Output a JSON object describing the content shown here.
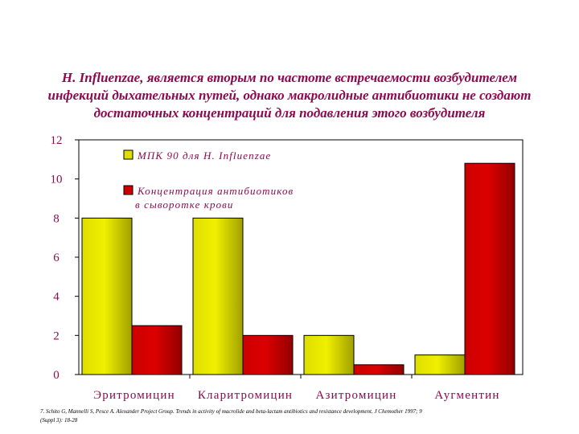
{
  "title_lines": [
    "H. Influenzae, является вторым по частоте встречаемости возбудителем",
    "инфекций дыхательных путей, однако макролидные антибиотики не создают",
    "достаточных концентраций для подавления этого возбудителя"
  ],
  "citation_lines": [
    "7. Schito G, Mannelli S, Pesce A. Alexander Project Group. Trends in activity of macrolide and beta-lactam antibiotics and resistance development. J Chemother 1997; 9",
    "(Suppl 3): 18-28"
  ],
  "colors": {
    "title": "#8b0a50",
    "axis_labels": "#8b0a50",
    "legend_text": "#8b0a50",
    "series_yellow": "#dede00",
    "series_red": "#cc0000"
  },
  "chart_data": {
    "type": "bar",
    "categories": [
      "Эритромицин",
      "Кларитромицин",
      "Азитромицин",
      "Аугментин"
    ],
    "series": [
      {
        "name": "МПК 90 для H. Influenzae",
        "values": [
          8,
          8,
          2,
          1
        ],
        "color": "#dede00"
      },
      {
        "name": "Концентрация антибиотиков в сыворотке крови",
        "legend_lines": [
          "Концентрация антибиотиков",
          "в сыворотке крови"
        ],
        "values": [
          2.5,
          2,
          0.5,
          10.8
        ],
        "color": "#cc0000"
      }
    ],
    "ylim": [
      0,
      12
    ],
    "yticks": [
      "0",
      "2",
      "4",
      "6",
      "8",
      "10",
      "12"
    ],
    "ytick_values": [
      0,
      2,
      4,
      6,
      8,
      10,
      12
    ],
    "grid": false,
    "legend_position": "top-left"
  }
}
